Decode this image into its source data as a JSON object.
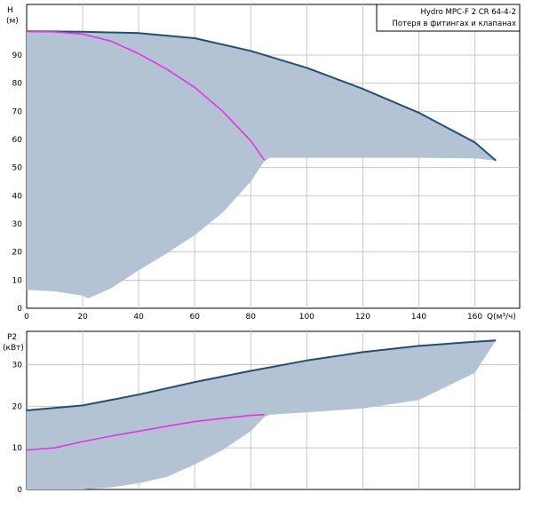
{
  "colors": {
    "pump_curve": "#1f4e79",
    "loss_curve": "#e832e8",
    "area_fill": "#b3c3d3",
    "grid": "#c8c8c8",
    "frame": "#000000"
  },
  "legend": {
    "line1": "Hydro  MPC-F 2  CR 64-4-2",
    "line2": "Потеря в фитингах и клапанах"
  },
  "chart_data": [
    {
      "type": "area",
      "ylabel_top": "H",
      "ylabel_unit": "(м)",
      "xlabel": "Q(м³/ч)",
      "xlim": [
        0,
        176
      ],
      "ylim": [
        0,
        108
      ],
      "x_ticks": [
        0,
        20,
        40,
        60,
        80,
        100,
        120,
        140,
        160
      ],
      "y_ticks": [
        0,
        10,
        20,
        30,
        40,
        50,
        60,
        70,
        80,
        90
      ],
      "grid": true,
      "legend_position": "top-right",
      "series": [
        {
          "name": "Hydro  MPC-F 2  CR 64-4-2",
          "x": [
            0,
            20,
            40,
            60,
            80,
            100,
            120,
            140,
            160,
            167.5
          ],
          "y": [
            98.5,
            98.3,
            97.8,
            96.0,
            91.5,
            85.5,
            78.0,
            69.5,
            59.0,
            52.5
          ]
        },
        {
          "name": "Потеря в фитингах и клапанах",
          "x": [
            0,
            10,
            20,
            30,
            40,
            50,
            60,
            70,
            80,
            85
          ],
          "y": [
            98.5,
            98.2,
            97.5,
            95.0,
            90.5,
            85.0,
            78.5,
            70.0,
            59.5,
            52.5
          ]
        }
      ],
      "envelope_lower": {
        "x": [
          0,
          10,
          20,
          22,
          30,
          40,
          50,
          60,
          70,
          80,
          85,
          87,
          100,
          120,
          140,
          160,
          167.5
        ],
        "y": [
          6.5,
          6.0,
          4.5,
          3.5,
          7.0,
          13.5,
          19.5,
          26.0,
          34.0,
          45.0,
          52.5,
          53.5,
          53.5,
          53.5,
          53.5,
          53.3,
          52.5
        ]
      }
    },
    {
      "type": "area",
      "ylabel_top": "P2",
      "ylabel_unit": "(кВт)",
      "xlim": [
        0,
        176
      ],
      "ylim": [
        0,
        38
      ],
      "x_ticks": [
        0,
        20,
        40,
        60,
        80,
        100,
        120,
        140,
        160
      ],
      "y_ticks": [
        0,
        10,
        20,
        30
      ],
      "grid": true,
      "series": [
        {
          "name": "Hydro  MPC-F 2  CR 64-4-2",
          "x": [
            0,
            20,
            40,
            60,
            80,
            100,
            120,
            140,
            160,
            167.5
          ],
          "y": [
            19.0,
            20.2,
            22.8,
            25.8,
            28.5,
            31.0,
            33.0,
            34.5,
            35.5,
            35.8
          ]
        },
        {
          "name": "Потеря в фитингах и клапанах",
          "x": [
            0,
            10,
            20,
            30,
            40,
            50,
            60,
            70,
            80,
            85
          ],
          "y": [
            9.5,
            10.0,
            11.5,
            12.8,
            14.0,
            15.2,
            16.3,
            17.1,
            17.8,
            18.0
          ]
        }
      ],
      "envelope_lower": {
        "x": [
          0,
          10,
          20,
          30,
          40,
          50,
          60,
          70,
          80,
          85,
          87,
          100,
          120,
          140,
          160,
          167.5
        ],
        "y": [
          0.0,
          0.0,
          0.0,
          0.5,
          1.5,
          3.0,
          6.0,
          9.5,
          14.0,
          17.5,
          18.0,
          18.5,
          19.5,
          21.5,
          28.0,
          35.8
        ]
      }
    }
  ]
}
